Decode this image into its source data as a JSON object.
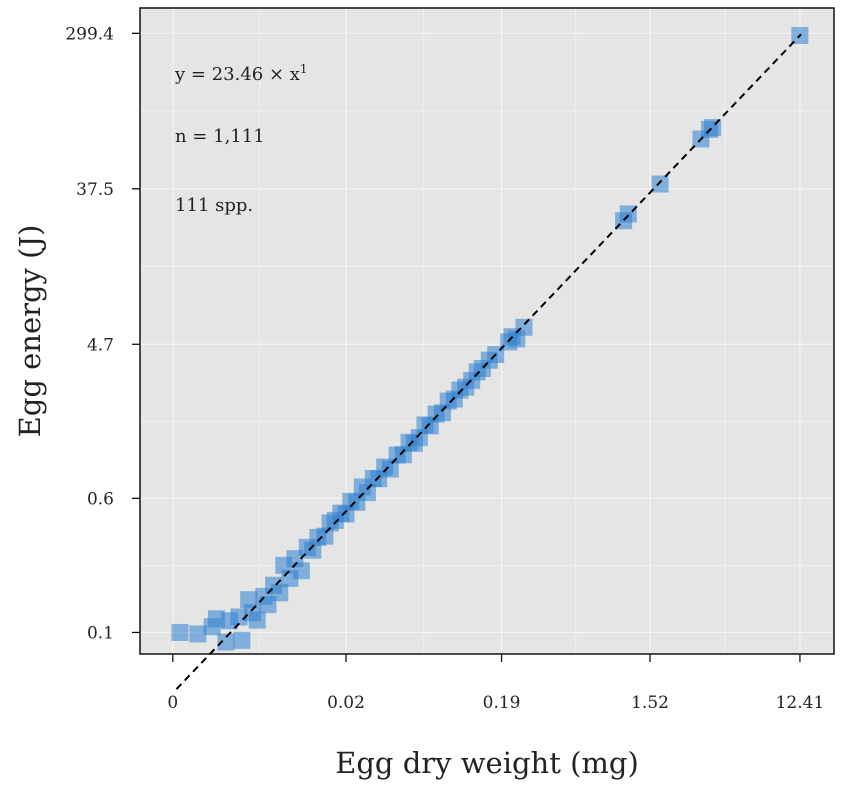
{
  "chart_data": {
    "type": "scatter",
    "xlabel": "Egg dry weight (mg)",
    "ylabel": "Egg energy (J)",
    "x_scale": "log",
    "y_scale": "log",
    "x_ticks": [
      "0",
      "0.02",
      "0.19",
      "1.52",
      "12.41"
    ],
    "y_ticks": [
      "0.1",
      "0.6",
      "4.7",
      "37.5",
      "299.4"
    ],
    "x_tick_values": [
      0.0019,
      0.0215,
      0.19,
      1.52,
      12.41
    ],
    "y_tick_values": [
      0.1,
      0.6,
      4.7,
      37.5,
      299.4
    ],
    "xlim": [
      0.0012,
      20
    ],
    "ylim": [
      0.075,
      420
    ],
    "grid": true,
    "annotations": [
      "y = 23.46 × x",
      "n = 1,111",
      "111 spp."
    ],
    "annotation_superscript": "1",
    "fit": {
      "coefficient": 23.46,
      "exponent": 1
    },
    "series": [
      {
        "x": [
          0.0021,
          0.0027,
          0.0033,
          0.0035,
          0.004,
          0.0042,
          0.0048,
          0.005,
          0.0055,
          0.0058,
          0.0062,
          0.0068,
          0.0072,
          0.0078,
          0.0085,
          0.009,
          0.0098,
          0.0105,
          0.0115,
          0.0125,
          0.0135,
          0.0145,
          0.016,
          0.0172,
          0.0185,
          0.02,
          0.0215,
          0.023,
          0.025,
          0.027,
          0.029,
          0.0315,
          0.034,
          0.037,
          0.04,
          0.044,
          0.048,
          0.052,
          0.056,
          0.06,
          0.065,
          0.07,
          0.076,
          0.083,
          0.09,
          0.098,
          0.106,
          0.115,
          0.125,
          0.135,
          0.145,
          0.16,
          0.175,
          0.21,
          0.22,
          0.235,
          0.26,
          1.05,
          1.12,
          1.75,
          3.1,
          3.5,
          3.65,
          12.4
        ],
        "y": [
          0.1,
          0.098,
          0.108,
          0.12,
          0.088,
          0.117,
          0.123,
          0.09,
          0.155,
          0.13,
          0.118,
          0.162,
          0.145,
          0.188,
          0.17,
          0.245,
          0.206,
          0.268,
          0.228,
          0.312,
          0.3,
          0.356,
          0.362,
          0.432,
          0.447,
          0.492,
          0.487,
          0.577,
          0.569,
          0.699,
          0.648,
          0.782,
          0.78,
          0.911,
          0.887,
          1.07,
          1.075,
          1.27,
          1.25,
          1.35,
          1.6,
          1.58,
          1.85,
          1.88,
          2.2,
          2.26,
          2.55,
          2.65,
          2.9,
          3.25,
          3.4,
          3.8,
          4.1,
          4.85,
          5.2,
          5.05,
          5.9,
          24.5,
          26.8,
          40.0,
          73.0,
          83.0,
          85.0,
          291.0
        ]
      }
    ],
    "colors": {
      "panel": "#e5e5e5",
      "grid": "#f4f4f4",
      "marker": "#2e80d0",
      "fit_line": "#000000"
    }
  }
}
